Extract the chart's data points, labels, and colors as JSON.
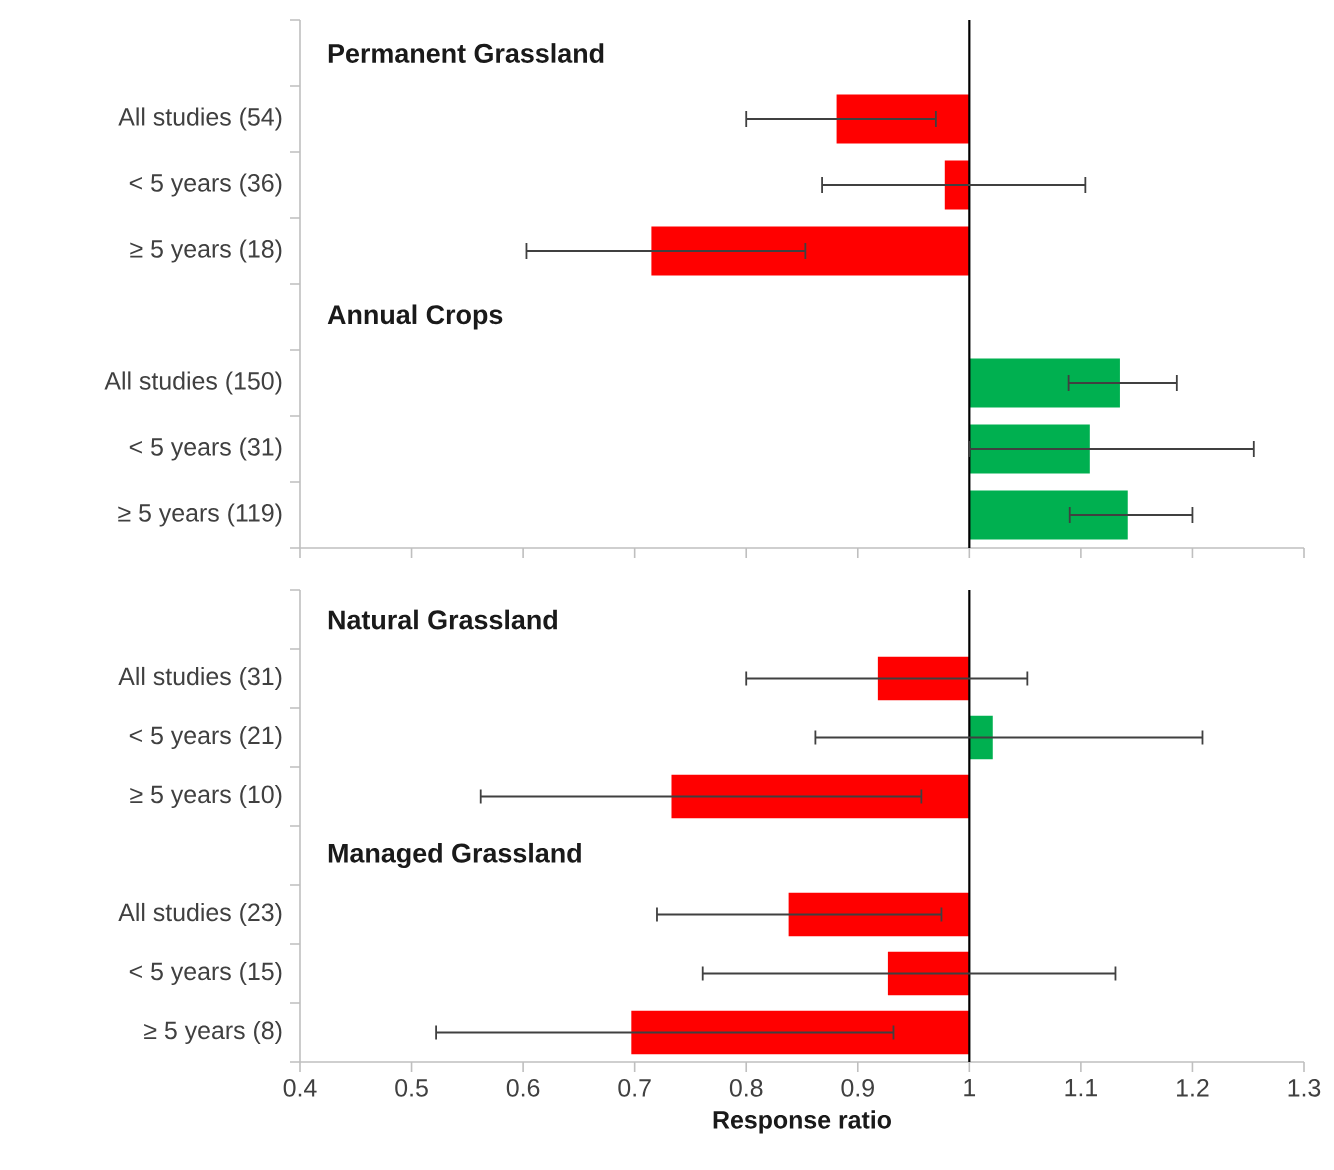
{
  "chart_data": [
    {
      "type": "bar",
      "orientation": "horizontal",
      "categories": [
        null,
        "All studies (54)",
        "< 5 years (36)",
        "≥ 5 years (18)",
        null,
        "All studies (150)",
        "< 5 years (31)",
        "≥ 5 years (119)"
      ],
      "base": [
        null,
        1,
        1,
        1,
        null,
        1,
        1,
        1
      ],
      "values": [
        null,
        -0.119,
        -0.022,
        -0.285,
        null,
        0.135,
        0.108,
        0.142
      ],
      "colors": [
        null,
        "#ff0000",
        "#ff0000",
        "#ff0000",
        null,
        "#00b050",
        "#00b050",
        "#00b050"
      ],
      "errors": [
        null,
        [
          0.8,
          0.97
        ],
        [
          0.868,
          1.104
        ],
        [
          0.603,
          0.853
        ],
        null,
        [
          1.089,
          1.186
        ],
        [
          1.0,
          1.255
        ],
        [
          1.09,
          1.2
        ]
      ],
      "xlim": [
        0.4,
        1.3
      ],
      "xticks": [
        0.4,
        0.5,
        0.6,
        0.7,
        0.8,
        0.9,
        1,
        1.1,
        1.2,
        1.3
      ],
      "tick_labels": "y",
      "ref_lines": [
        {
          "axis": "x",
          "value": 1,
          "color": "#000000"
        }
      ],
      "annotations": [
        "Permanent Grassland",
        "Annual Crops"
      ]
    },
    {
      "type": "bar",
      "orientation": "horizontal",
      "categories": [
        null,
        "All studies (31)",
        "< 5 years (21)",
        "≥ 5 years (10)",
        null,
        "All studies (23)",
        "< 5 years (15)",
        "≥ 5 years (8)"
      ],
      "base": [
        null,
        1,
        1,
        1,
        null,
        1,
        1,
        1
      ],
      "values": [
        null,
        -0.082,
        0.021,
        -0.267,
        null,
        -0.162,
        -0.073,
        -0.303
      ],
      "colors": [
        null,
        "#ff0000",
        "#00b050",
        "#ff0000",
        null,
        "#ff0000",
        "#ff0000",
        "#ff0000"
      ],
      "errors": [
        null,
        [
          0.8,
          1.052
        ],
        [
          0.862,
          1.209
        ],
        [
          0.562,
          0.957
        ],
        null,
        [
          0.72,
          0.975
        ],
        [
          0.761,
          1.131
        ],
        [
          0.522,
          0.932
        ]
      ],
      "xlim": [
        0.4,
        1.3
      ],
      "xticks": [
        0.4,
        0.5,
        0.6,
        0.7,
        0.8,
        0.9,
        1,
        1.1,
        1.2,
        1.3
      ],
      "xlabel": "Response ratio",
      "ref_lines": [
        {
          "axis": "x",
          "value": 1,
          "color": "#000000"
        }
      ],
      "annotations": [
        "Natural Grassland",
        "Managed Grassland"
      ]
    }
  ]
}
